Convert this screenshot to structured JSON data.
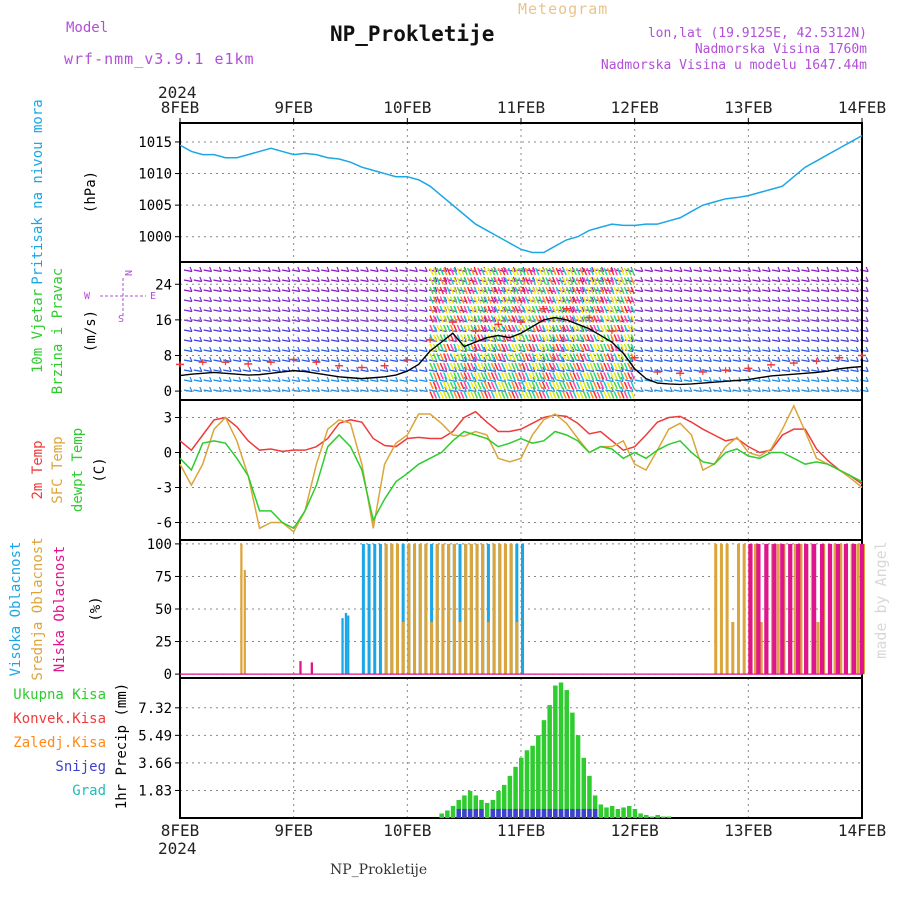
{
  "header": {
    "model_label": "Model",
    "model_name": "wrf-nmm_v3.9.1 e1km",
    "title": "NP_Prokletije",
    "subtitle": "Meteogram",
    "loc_line1": "lon,lat (19.9125E, 42.5312N)",
    "loc_line2": "Nadmorska Visina 1760m",
    "loc_line3": "Nadmorska Visina u modelu 1647.44m",
    "year": "2024",
    "footer_station": "NP_Prokletije",
    "credit": "made by Angel"
  },
  "colors": {
    "pressure": "#1ba7e6",
    "temp2m": "#ee3b3b",
    "sfc": "#dca53b",
    "dewpt": "#2ecc2e",
    "high_cloud": "#1ba7e6",
    "mid_cloud": "#dca53b",
    "low_cloud": "#e0148c",
    "total_precip": "#2ecc2e",
    "snow": "#4040d0",
    "grad": "#22bbbb",
    "wind_black": "#000000"
  },
  "chart_data": [
    {
      "panel": "pressure",
      "type": "line",
      "ylabel_lines": [
        "Pritisak na nivou mora",
        "(hPa)"
      ],
      "y_ticks": [
        1000,
        1005,
        1010,
        1015
      ],
      "ylim": [
        996,
        1018
      ],
      "x_dates": [
        "8FEB",
        "9FEB",
        "10FEB",
        "11FEB",
        "12FEB",
        "13FEB",
        "14FEB"
      ],
      "x": [
        0,
        0.1,
        0.2,
        0.3,
        0.4,
        0.5,
        0.6,
        0.7,
        0.8,
        0.9,
        1.0,
        1.1,
        1.2,
        1.3,
        1.4,
        1.5,
        1.6,
        1.7,
        1.8,
        1.9,
        2.0,
        2.1,
        2.2,
        2.3,
        2.4,
        2.5,
        2.6,
        2.7,
        2.8,
        2.9,
        3.0,
        3.1,
        3.2,
        3.3,
        3.4,
        3.5,
        3.6,
        3.7,
        3.8,
        3.9,
        4.0,
        4.1,
        4.2,
        4.3,
        4.4,
        4.5,
        4.6,
        4.7,
        4.8,
        4.9,
        5.0,
        5.1,
        5.2,
        5.3,
        5.4,
        5.5,
        5.6,
        5.7,
        5.8,
        5.9,
        6.0
      ],
      "values": [
        1014.5,
        1013.5,
        1013,
        1013,
        1012.5,
        1012.5,
        1013,
        1013.5,
        1014,
        1013.5,
        1013,
        1013.2,
        1013,
        1012.5,
        1012.3,
        1011.8,
        1011,
        1010.5,
        1010,
        1009.5,
        1009.5,
        1009,
        1008,
        1006.5,
        1005,
        1003.5,
        1002,
        1001,
        1000,
        999,
        998,
        997.5,
        997.5,
        998.5,
        999.5,
        1000,
        1001,
        1001.5,
        1002,
        1001.8,
        1001.8,
        1002,
        1002,
        1002.5,
        1003,
        1004,
        1005,
        1005.5,
        1006,
        1006.2,
        1006.5,
        1007,
        1007.5,
        1008,
        1009.5,
        1011,
        1012,
        1013,
        1014,
        1015,
        1016
      ]
    },
    {
      "panel": "wind",
      "type": "line",
      "ylabel_lines": [
        "10m Vjetar",
        "Brzina i Pravac",
        "(m/s)"
      ],
      "compass": {
        "n": "N",
        "e": "E",
        "w": "W",
        "s": "S"
      },
      "y_ticks": [
        0,
        8,
        16,
        24
      ],
      "ylim": [
        -2,
        29
      ],
      "x": [
        0,
        0.1,
        0.2,
        0.3,
        0.4,
        0.5,
        0.6,
        0.7,
        0.8,
        0.9,
        1.0,
        1.1,
        1.2,
        1.3,
        1.4,
        1.5,
        1.6,
        1.7,
        1.8,
        1.9,
        2.0,
        2.1,
        2.2,
        2.3,
        2.4,
        2.5,
        2.6,
        2.7,
        2.8,
        2.9,
        3.0,
        3.1,
        3.2,
        3.3,
        3.4,
        3.5,
        3.6,
        3.7,
        3.8,
        3.9,
        4.0,
        4.1,
        4.2,
        4.3,
        4.4,
        4.5,
        4.6,
        4.7,
        4.8,
        4.9,
        5.0,
        5.1,
        5.2,
        5.3,
        5.4,
        5.5,
        5.6,
        5.7,
        5.8,
        5.9,
        6.0
      ],
      "speed": [
        3.5,
        3.8,
        4,
        4.2,
        4,
        3.8,
        3.6,
        3.7,
        4,
        4.3,
        4.6,
        4.4,
        4,
        3.6,
        3.2,
        3,
        2.8,
        3,
        3.2,
        3.6,
        4.5,
        6,
        9,
        11,
        13,
        10,
        11,
        12,
        12.5,
        12,
        13,
        14.5,
        16,
        16.5,
        16,
        15,
        14,
        12.5,
        11,
        8.5,
        5,
        2.8,
        1.8,
        1.6,
        1.5,
        1.6,
        1.8,
        2,
        2.2,
        2.4,
        2.6,
        3,
        3.4,
        3.6,
        3.8,
        4,
        4.2,
        4.5,
        5,
        5.3,
        5.5
      ],
      "gust_markers": "red"
    },
    {
      "panel": "temperature",
      "type": "line",
      "ylabel_lines": [
        "2m Temp",
        "SFC Temp",
        "dewpt Temp",
        "(C)"
      ],
      "y_ticks": [
        -6,
        -3,
        0,
        3
      ],
      "ylim": [
        -7.5,
        4.5
      ],
      "x": [
        0,
        0.1,
        0.2,
        0.3,
        0.4,
        0.5,
        0.6,
        0.7,
        0.8,
        0.9,
        1.0,
        1.1,
        1.2,
        1.3,
        1.4,
        1.5,
        1.6,
        1.7,
        1.8,
        1.9,
        2.0,
        2.1,
        2.2,
        2.3,
        2.4,
        2.5,
        2.6,
        2.7,
        2.8,
        2.9,
        3.0,
        3.1,
        3.2,
        3.3,
        3.4,
        3.5,
        3.6,
        3.7,
        3.8,
        3.9,
        4.0,
        4.1,
        4.2,
        4.3,
        4.4,
        4.5,
        4.6,
        4.7,
        4.8,
        4.9,
        5.0,
        5.1,
        5.2,
        5.3,
        5.4,
        5.5,
        5.6,
        5.7,
        5.8,
        5.9,
        6.0
      ],
      "series": [
        {
          "name": "2m Temp",
          "key": "temp2m",
          "values": [
            1,
            0.2,
            1.5,
            2.8,
            3,
            2.2,
            1,
            0.2,
            0.3,
            0.1,
            0.2,
            0.2,
            0.5,
            1.2,
            2.5,
            2.8,
            2.6,
            1.2,
            0.6,
            0.5,
            1.2,
            1.3,
            1.2,
            1.2,
            1.8,
            3,
            3.5,
            2.6,
            1.8,
            1.8,
            2,
            2.5,
            3,
            3.2,
            3.1,
            2.5,
            1.6,
            1.8,
            1,
            0.2,
            0.5,
            1.5,
            2.6,
            3,
            3.1,
            2.6,
            2,
            1.5,
            1,
            1.2,
            0.5,
            0,
            0.2,
            1.5,
            2,
            2,
            0.3,
            -0.7,
            -1.5,
            -2,
            -2.7
          ]
        },
        {
          "name": "SFC Temp",
          "key": "sfc",
          "values": [
            -1,
            -2.8,
            -1,
            2,
            3,
            1,
            -2,
            -6.5,
            -6,
            -6,
            -6.8,
            -5,
            -1,
            2,
            2.8,
            2.5,
            -1,
            -6.5,
            -1,
            0.8,
            1.5,
            3.3,
            3.3,
            2.5,
            1.5,
            1.4,
            1.8,
            1.5,
            -0.5,
            -0.8,
            -0.5,
            1.5,
            2.8,
            3.3,
            2.5,
            1.2,
            0,
            0.5,
            0.5,
            1,
            -1,
            -1.5,
            0.2,
            2,
            2.5,
            1.5,
            -1.5,
            -1,
            0.5,
            1.3,
            0,
            -0.3,
            0.3,
            2,
            4,
            1.8,
            -0.5,
            -1,
            -1.5,
            -2.2,
            -3
          ]
        },
        {
          "name": "dewpt Temp",
          "key": "dewpt",
          "values": [
            -0.5,
            -1.5,
            0.8,
            1,
            0.8,
            -0.5,
            -2,
            -5,
            -5,
            -6,
            -6.5,
            -5,
            -2.8,
            0.5,
            1.5,
            0.5,
            -1.5,
            -5.8,
            -4,
            -2.5,
            -1.8,
            -1,
            -0.5,
            0,
            1,
            1.8,
            1.5,
            1.2,
            0.5,
            0.8,
            1.2,
            0.8,
            1,
            1.8,
            1.5,
            1,
            0,
            0.5,
            0.3,
            -0.5,
            0,
            -0.5,
            0.2,
            0.7,
            1,
            0,
            -0.8,
            -1,
            0,
            0.3,
            -0.3,
            -0.5,
            0,
            0,
            -0.5,
            -1,
            -0.8,
            -1,
            -1.5,
            -2,
            -2.5
          ]
        }
      ]
    },
    {
      "panel": "cloud",
      "type": "bar",
      "ylabel_lines": [
        "Visoka Oblacnost",
        "Srednja Oblacnost",
        "Niska Oblacnost",
        "(%)"
      ],
      "y_ticks": [
        0,
        25,
        50,
        75,
        100
      ],
      "ylim": [
        -3,
        103
      ],
      "high_segments": [
        [
          1.42,
          1.44,
          43
        ],
        [
          1.45,
          1.47,
          47
        ],
        [
          1.47,
          1.49,
          45
        ],
        [
          1.6,
          3.0,
          100
        ]
      ],
      "mid_segments": [
        [
          0.53,
          0.55,
          100
        ],
        [
          0.56,
          0.58,
          80
        ],
        [
          1.8,
          2.95,
          100
        ],
        [
          4.7,
          6.0,
          100
        ]
      ],
      "low_segments": [
        [
          1.05,
          1.07,
          10
        ],
        [
          1.15,
          1.17,
          9
        ],
        [
          5.0,
          6.0,
          100
        ]
      ]
    },
    {
      "panel": "precip",
      "type": "bar",
      "legend": [
        "Ukupna Kisa",
        "Konvek.Kisa",
        "Zaledj.Kisa",
        "Snijeg",
        "Grad"
      ],
      "ylabel": "1hr Precip (mm)",
      "y_ticks": [
        "1.83",
        "3.66",
        "5.49",
        "7.32"
      ],
      "ylim": [
        0,
        9.3
      ],
      "x": [
        2.3,
        2.35,
        2.4,
        2.45,
        2.5,
        2.55,
        2.6,
        2.65,
        2.7,
        2.75,
        2.8,
        2.85,
        2.9,
        2.95,
        3.0,
        3.05,
        3.1,
        3.15,
        3.2,
        3.25,
        3.3,
        3.35,
        3.4,
        3.45,
        3.5,
        3.55,
        3.6,
        3.65,
        3.7,
        3.75,
        3.8,
        3.85,
        3.9,
        3.95,
        4.0,
        4.05,
        4.1,
        4.15,
        4.2,
        4.25,
        4.3
      ],
      "values": [
        0.3,
        0.5,
        0.8,
        1.2,
        1.5,
        1.8,
        1.5,
        1.2,
        1.0,
        1.2,
        1.8,
        2.2,
        2.8,
        3.4,
        4.0,
        4.5,
        4.8,
        5.5,
        6.5,
        7.5,
        8.8,
        9.0,
        8.5,
        7.0,
        5.5,
        4.0,
        2.8,
        1.5,
        0.9,
        0.7,
        0.8,
        0.6,
        0.7,
        0.8,
        0.6,
        0.3,
        0.2,
        0.1,
        0.2,
        0.1,
        0.1
      ]
    }
  ]
}
